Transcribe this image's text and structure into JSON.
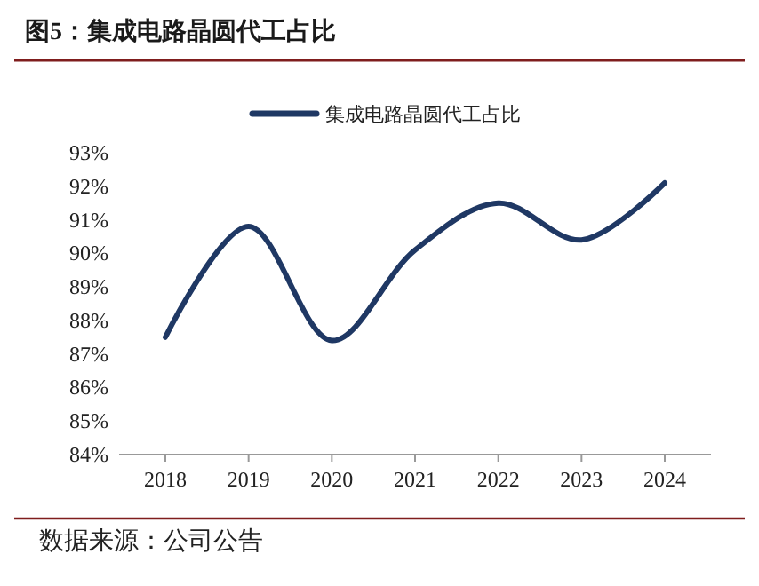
{
  "chart_data": {
    "type": "line",
    "title": "图5：集成电路晶圆代工占比",
    "categories": [
      "2018",
      "2019",
      "2020",
      "2021",
      "2022",
      "2023",
      "2024"
    ],
    "series": [
      {
        "name": "集成电路晶圆代工占比",
        "color": "#1f3864",
        "values": [
          87.5,
          90.8,
          87.4,
          90.1,
          91.5,
          90.4,
          92.1
        ]
      }
    ],
    "ylim": [
      84,
      93
    ],
    "yticks": [
      {
        "value": 84,
        "label": "84%"
      },
      {
        "value": 85,
        "label": "85%"
      },
      {
        "value": 86,
        "label": "86%"
      },
      {
        "value": 87,
        "label": "87%"
      },
      {
        "value": 88,
        "label": "88%"
      },
      {
        "value": 89,
        "label": "89%"
      },
      {
        "value": 90,
        "label": "90%"
      },
      {
        "value": 91,
        "label": "91%"
      },
      {
        "value": 92,
        "label": "92%"
      },
      {
        "value": 93,
        "label": "93%"
      }
    ],
    "legend": "top",
    "grid": false,
    "marker": "none",
    "line_style": "solid",
    "annotations": [
      "数据来源：公司公告"
    ]
  }
}
